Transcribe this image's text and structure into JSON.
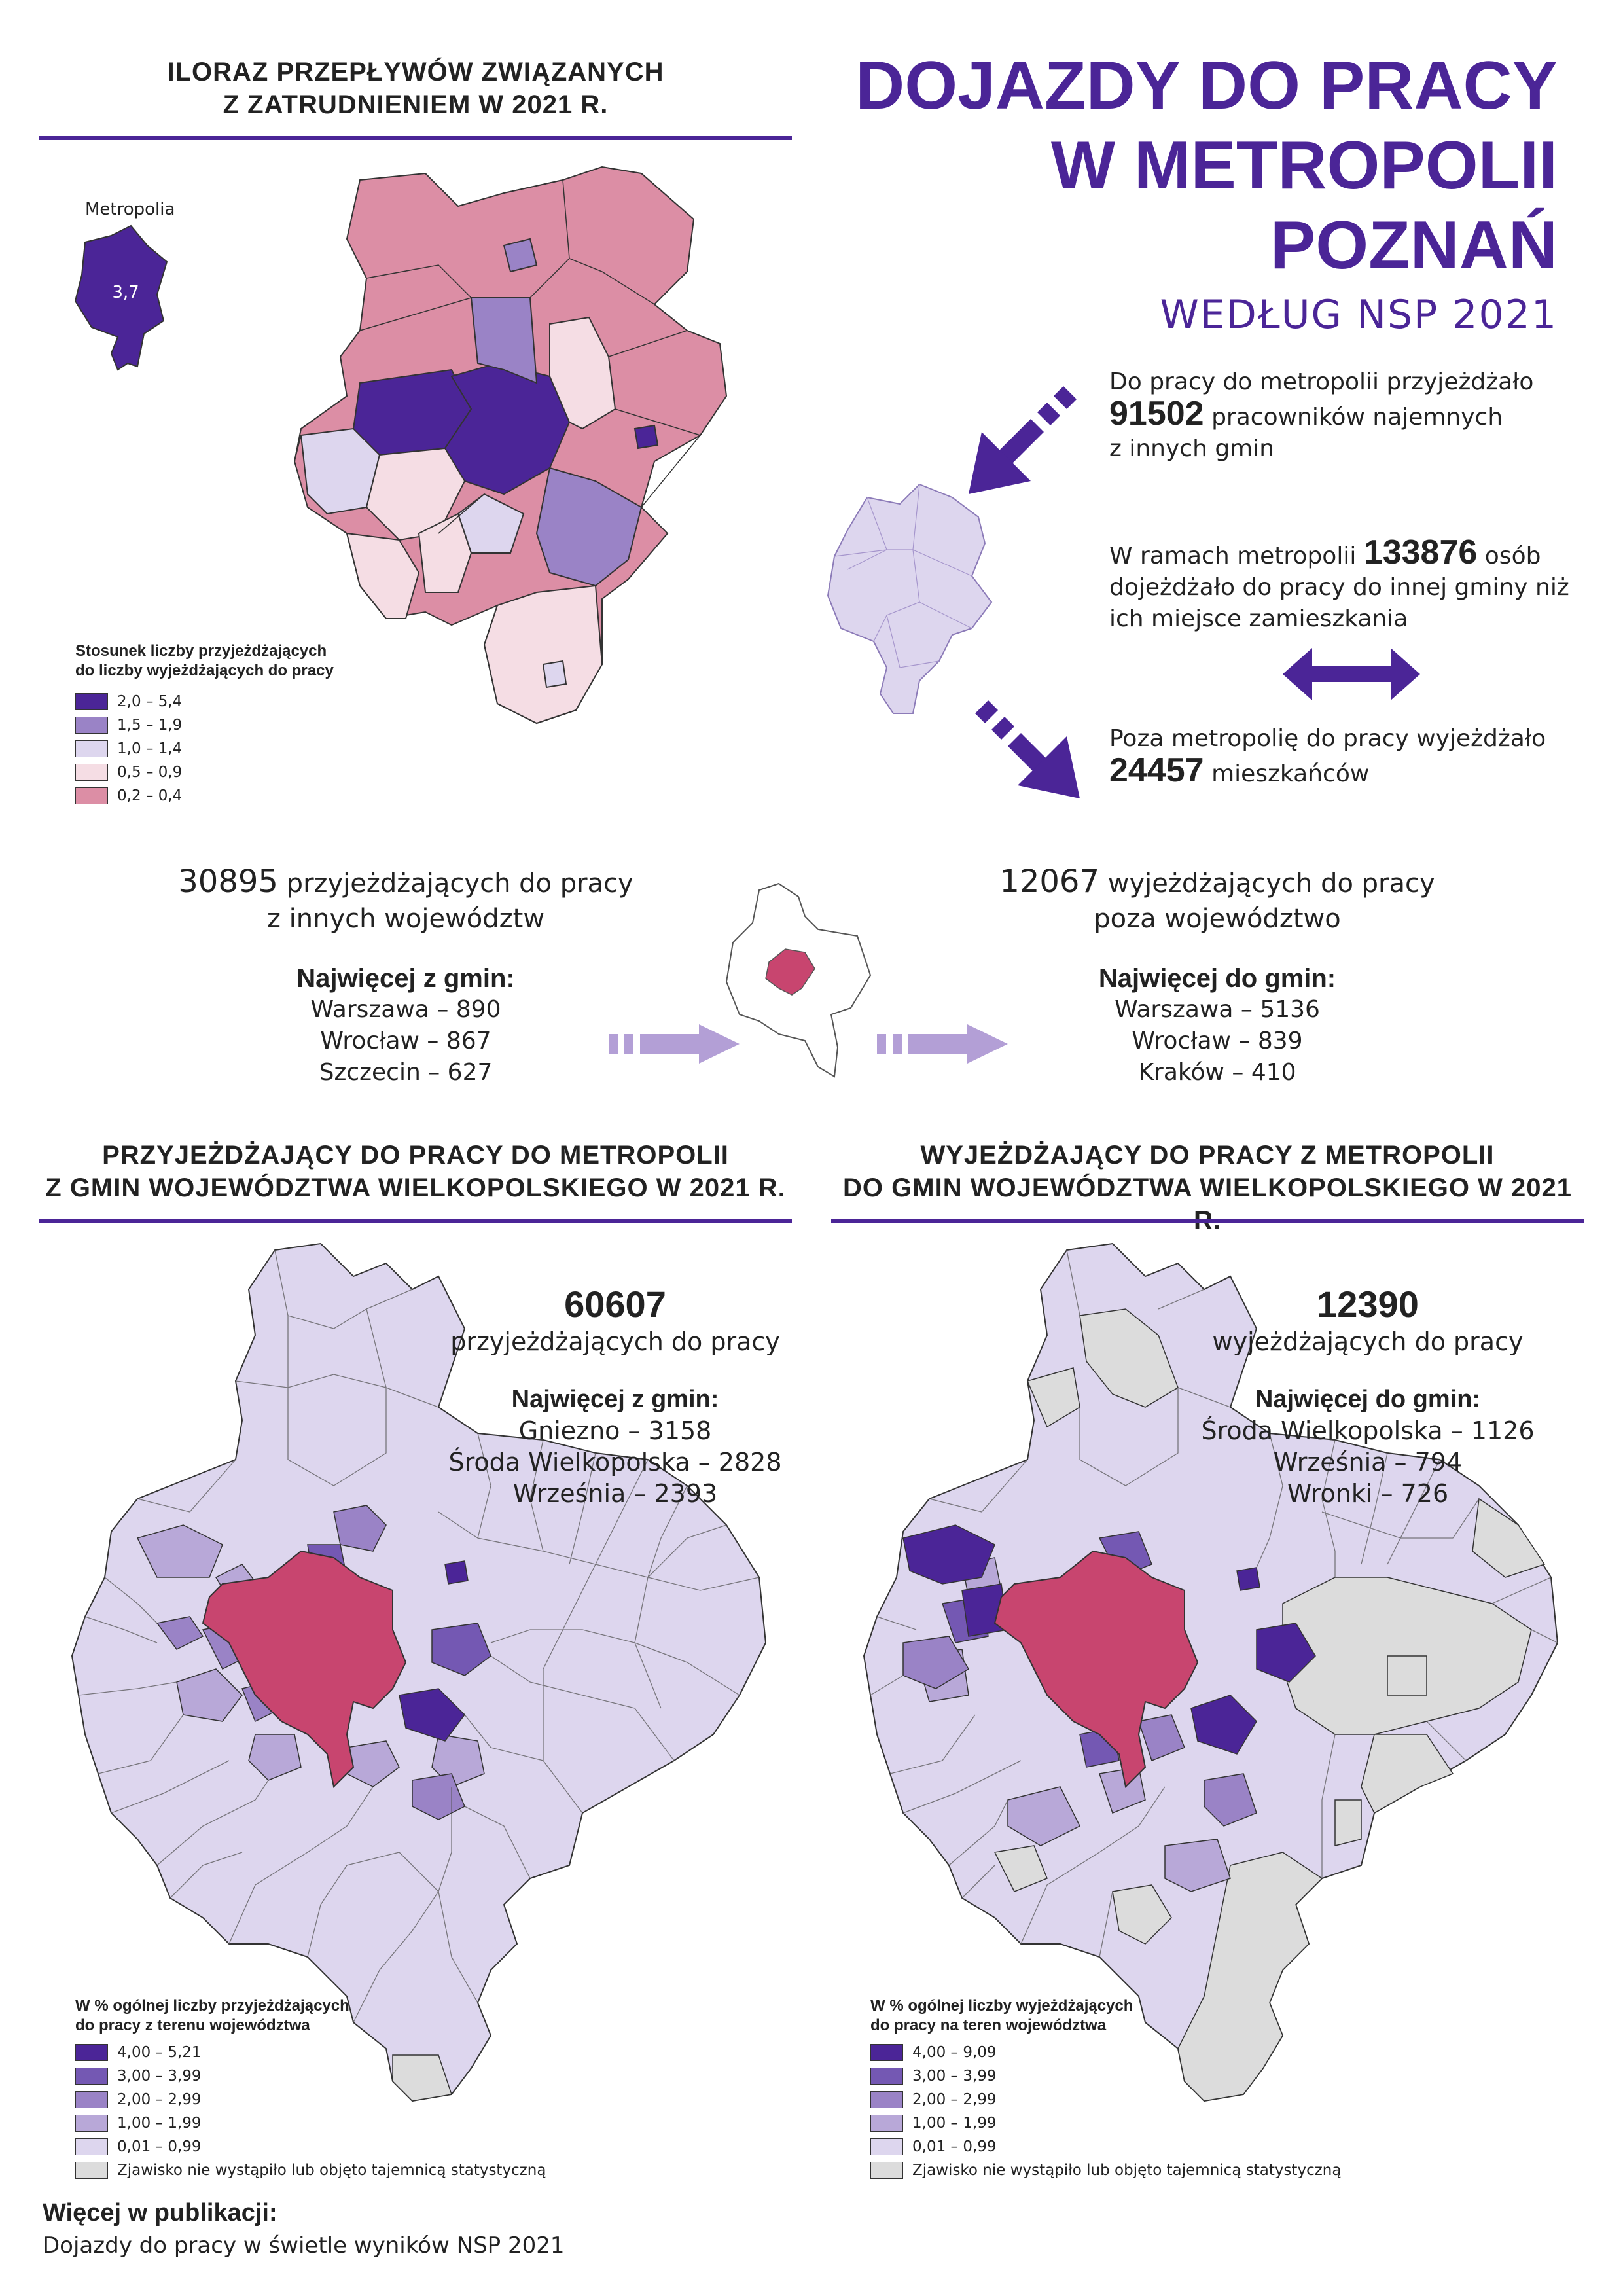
{
  "header": {
    "title_lines": [
      "DOJAZDY DO PRACY",
      "W METROPOLII",
      "POZNAŃ"
    ],
    "subtitle": "WEDŁUG NSP 2021"
  },
  "quotient_map": {
    "title_lines": [
      "ILORAZ PRZEPŁYWÓW ZWIĄZANYCH",
      "Z ZATRUDNIENIEM W 2021 R."
    ],
    "inset_label": "Metropolia",
    "inset_value": "3,7",
    "legend_title_lines": [
      "Stosunek liczby przyjeżdżających",
      "do liczby wyjeżdżających do pracy"
    ],
    "legend": [
      {
        "label": "2,0 – 5,4",
        "color": "#4b2597"
      },
      {
        "label": "1,5 – 1,9",
        "color": "#9a83c6"
      },
      {
        "label": "1,0 – 1,4",
        "color": "#ddd6ee"
      },
      {
        "label": "0,5 – 0,9",
        "color": "#f5dde4"
      },
      {
        "label": "0,2 – 0,4",
        "color": "#dc8ea5"
      }
    ]
  },
  "flows": {
    "in_text": [
      "Do pracy do metropolii przyjeżdżało",
      "91502",
      "pracowników najemnych",
      "z innych gmin"
    ],
    "within_text": [
      "W ramach metropolii",
      "133876",
      "osób",
      "dojeżdżało do pracy do innej gminy niż",
      "ich miejsce zamieszkania"
    ],
    "out_text": [
      "Poza metropolię do pracy wyjeżdżało",
      "24457",
      "mieszkańców"
    ]
  },
  "voivodeships": {
    "in": {
      "value": "30895",
      "text_lines": [
        "przyjeżdżających do pracy",
        "z innych województw"
      ],
      "top_title": "Najwięcej z gmin:",
      "top": [
        "Warszawa – 890",
        "Wrocław – 867",
        "Szczecin – 627"
      ]
    },
    "out": {
      "value": "12067",
      "text_lines": [
        "wyjeżdżających do pracy",
        "poza województwo"
      ],
      "top_title": "Najwięcej do gmin:",
      "top": [
        "Warszawa – 5136",
        "Wrocław – 839",
        "Kraków – 410"
      ]
    }
  },
  "map_in": {
    "title_lines": [
      "PRZYJEŻDŻAJĄCY DO PRACY DO METROPOLII",
      "Z GMIN WOJEWÓDZTWA WIELKOPOLSKIEGO  W  2021  R."
    ],
    "value": "60607",
    "value_label": "przyjeżdżających do pracy",
    "top_title": "Najwięcej z gmin:",
    "top": [
      "Gniezno – 3158",
      "Środa Wielkopolska – 2828",
      "Września – 2393"
    ],
    "legend_title_lines": [
      "W % ogólnej liczby przyjeżdżających",
      "do pracy z terenu województwa"
    ],
    "legend": [
      {
        "label": "4,00 – 5,21",
        "color": "#4b2597"
      },
      {
        "label": "3,00 – 3,99",
        "color": "#7458b3"
      },
      {
        "label": "2,00 – 2,99",
        "color": "#9a83c6"
      },
      {
        "label": "1,00 – 1,99",
        "color": "#b8a8d8"
      },
      {
        "label": "0,01 – 0,99",
        "color": "#ddd6ee"
      },
      {
        "label": "Zjawisko nie wystąpiło lub objęto tajemnicą statystyczną",
        "color": "#dcdcdc"
      }
    ]
  },
  "map_out": {
    "title_lines": [
      "WYJEŻDŻAJĄCY DO PRACY Z METROPOLII",
      "DO GMIN WOJEWÓDZTWA WIELKOPOLSKIEGO  W  2021  R."
    ],
    "value": "12390",
    "value_label": "wyjeżdżających do pracy",
    "top_title": "Najwięcej do gmin:",
    "top": [
      "Środa Wielkopolska – 1126",
      "Września – 794",
      "Wronki – 726"
    ],
    "legend_title_lines": [
      "W % ogólnej liczby wyjeżdżających",
      "do pracy na teren województwa"
    ],
    "legend": [
      {
        "label": "4,00 – 9,09",
        "color": "#4b2597"
      },
      {
        "label": "3,00 – 3,99",
        "color": "#7458b3"
      },
      {
        "label": "2,00 – 2,99",
        "color": "#9a83c6"
      },
      {
        "label": "1,00 – 1,99",
        "color": "#b8a8d8"
      },
      {
        "label": "0,01 – 0,99",
        "color": "#ddd6ee"
      },
      {
        "label": "Zjawisko nie wystąpiło lub objęto tajemnicą statystyczną",
        "color": "#dcdcdc"
      }
    ]
  },
  "footer": {
    "title": "Więcej w publikacji:",
    "text": "Dojazdy do pracy w świetle wyników NSP 2021"
  },
  "colors": {
    "accent": "#4b2597",
    "metropolis": "#c8456f",
    "arrow_light": "#b39fd6"
  }
}
